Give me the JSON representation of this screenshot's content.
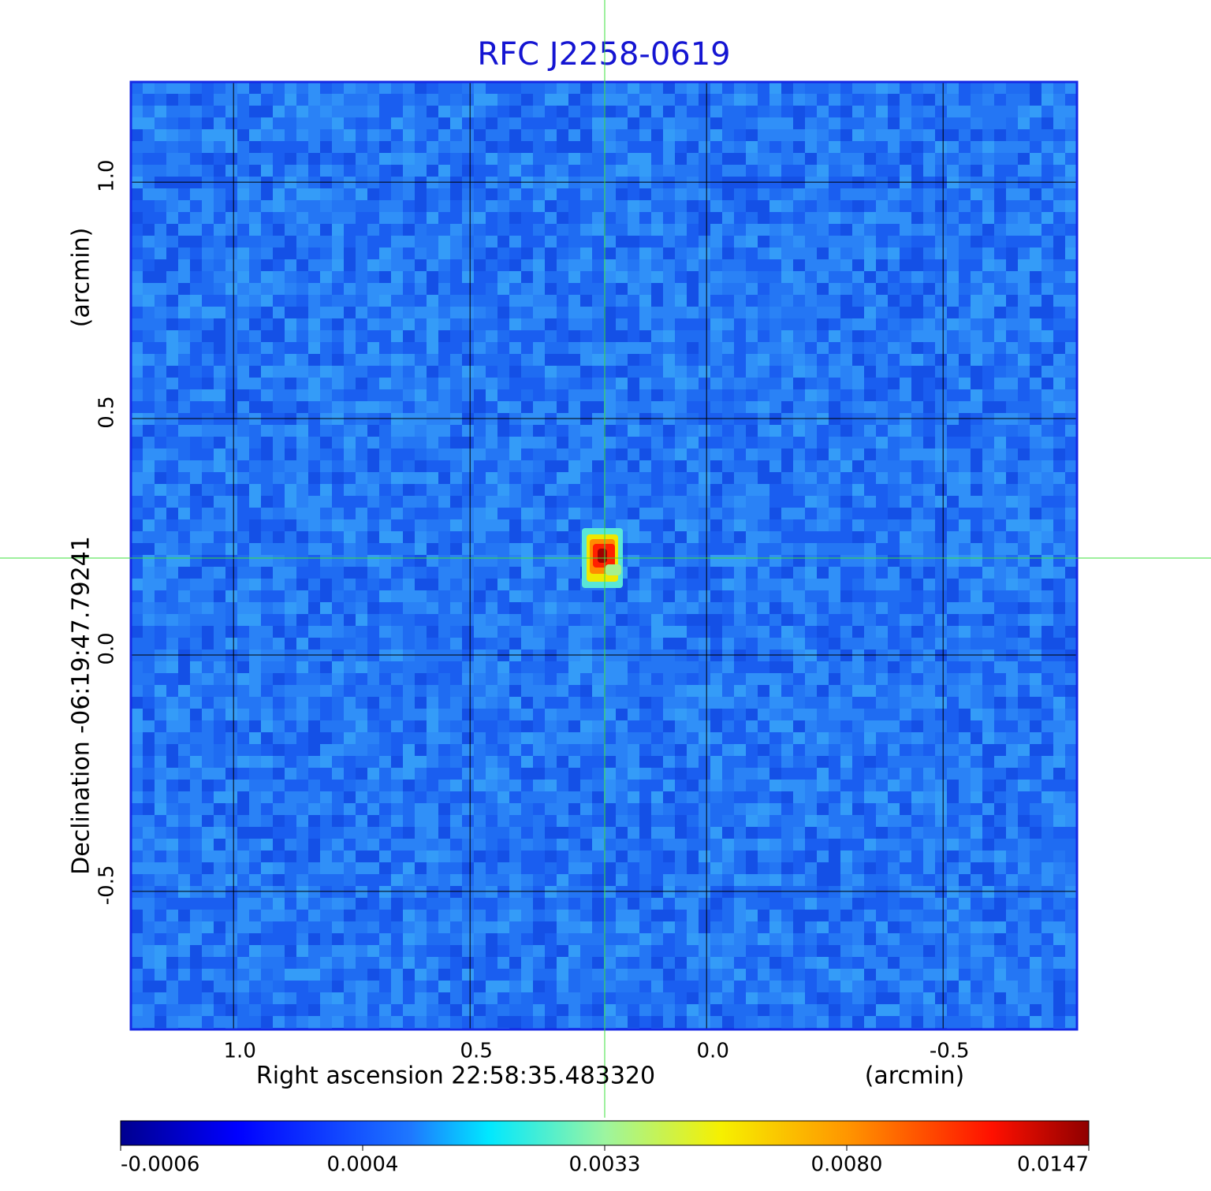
{
  "chart_data": {
    "type": "image",
    "title": "RFC J2258-0619",
    "xlabel": "Right ascension  22:58:35.483320",
    "xunit": "(arcmin)",
    "ylabel": "Declination  -06:19:47.79241",
    "yunit": "(arcmin)",
    "xlim": [
      1.217,
      -0.783
    ],
    "ylim": [
      -0.792,
      1.212
    ],
    "xticks": [
      {
        "value": 1,
        "label": "1.0"
      },
      {
        "value": 0.5,
        "label": "0.5"
      },
      {
        "value": 0,
        "label": "0.0"
      },
      {
        "value": -0.5,
        "label": "-0.5"
      }
    ],
    "yticks": [
      {
        "value": 1,
        "label": "1.0"
      },
      {
        "value": 0.5,
        "label": "0.5"
      },
      {
        "value": 0,
        "label": "0.0"
      },
      {
        "value": -0.5,
        "label": "-0.5"
      }
    ],
    "grid": true,
    "colorbar_ticks": [
      -0.0006,
      0.0004,
      0.0033,
      {
        "value": 0.008,
        "label": "0.0080"
      },
      0.0147
    ]
  }
}
